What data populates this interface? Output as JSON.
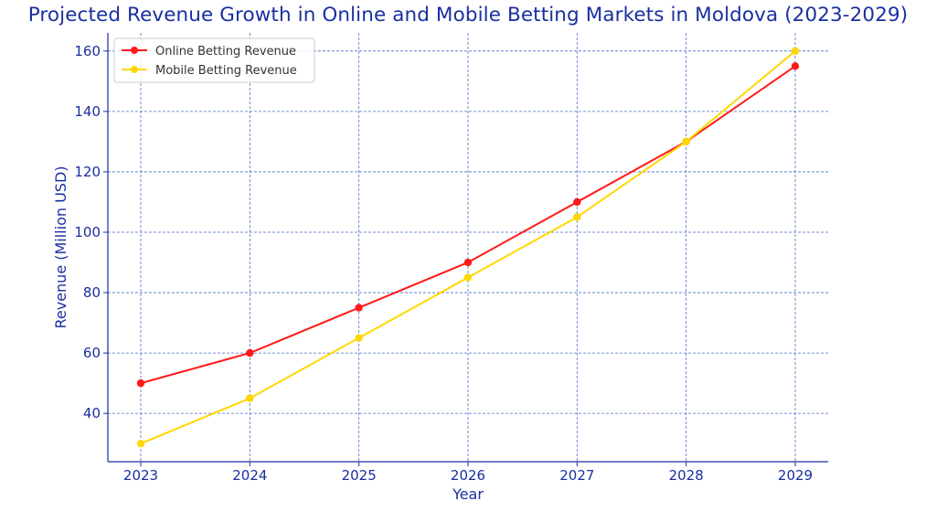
{
  "chart_data": {
    "type": "line",
    "title": "Projected Revenue Growth in Online and Mobile Betting Markets in Moldova (2023-2029)",
    "xlabel": "Year",
    "ylabel": "Revenue (Million USD)",
    "x": [
      "2023",
      "2024",
      "2025",
      "2026",
      "2027",
      "2028",
      "2029"
    ],
    "ylim": [
      24,
      166
    ],
    "yticks": [
      40,
      60,
      80,
      100,
      120,
      140,
      160
    ],
    "grid": true,
    "legend_position": "top-left",
    "series": [
      {
        "name": "Online Betting Revenue",
        "color": "#ff1a1a",
        "marker": "circle",
        "values": [
          50,
          60,
          75,
          90,
          110,
          130,
          155
        ]
      },
      {
        "name": "Mobile Betting Revenue",
        "color": "#ffd700",
        "marker": "circle",
        "values": [
          30,
          45,
          65,
          85,
          105,
          130,
          160
        ]
      }
    ],
    "colors": {
      "text": "#1a2fa0",
      "grid": "#4a6fc0",
      "axis": "#1a2fa0"
    }
  }
}
